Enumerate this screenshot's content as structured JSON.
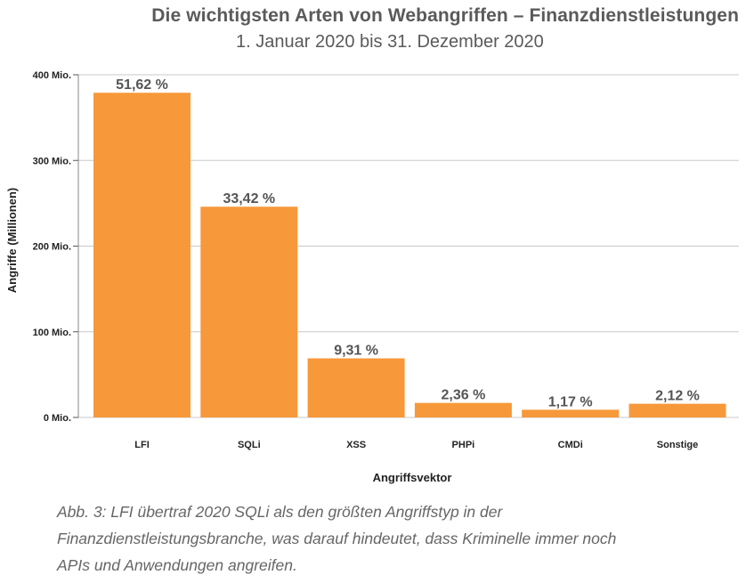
{
  "chart_data": {
    "type": "bar",
    "title": "Die wichtigsten Arten von Webangriffen – Finanzdienstleistungen",
    "subtitle": "1. Januar 2020 bis 31. Dezember 2020",
    "xlabel": "Angriffsvektor",
    "ylabel": "Angriffe (Millionen)",
    "categories": [
      "LFI",
      "SQLi",
      "XSS",
      "PHPi",
      "CMDi",
      "Sonstige"
    ],
    "values": [
      379,
      246,
      69,
      17,
      9,
      16
    ],
    "data_labels": [
      "51,62 %",
      "33,42 %",
      "9,31 %",
      "2,36 %",
      "1,17 %",
      "2,12 %"
    ],
    "ylim": [
      0,
      400
    ],
    "yticks": [
      0,
      100,
      200,
      300,
      400
    ],
    "ytick_labels": [
      "0 Mio.",
      "100 Mio.",
      "200 Mio.",
      "300 Mio.",
      "400 Mio."
    ],
    "grid": true,
    "bar_color": "#f7993a",
    "grid_color": "#c8c8c8"
  },
  "caption": {
    "lines": [
      "Abb. 3: LFI übertraf 2020 SQLi als den größten Angriffstyp in der",
      "Finanzdienstleistungsbranche, was darauf hindeutet, dass Kriminelle immer noch",
      "APIs und Anwendungen angreifen."
    ]
  }
}
